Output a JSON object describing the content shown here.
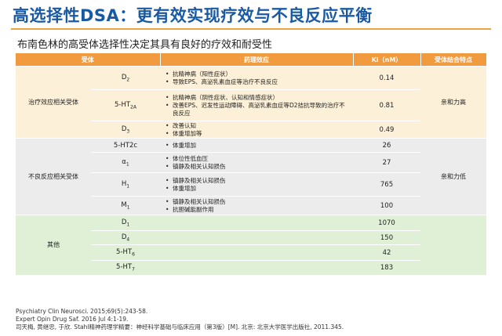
{
  "title": "高选择性DSA：更有效实现疗效与不良反应平衡",
  "subtitle": "布南色林的高受体选择性决定其具有良好的疗效和耐受性",
  "table": {
    "headers": [
      "受体",
      "药理效应",
      "Ki（nM）",
      "受体结合特点"
    ],
    "groups": [
      {
        "name": "治疗效应相关受体",
        "binding": "亲和力高",
        "rows": [
          {
            "receptor": "D2",
            "base": "D",
            "sub": "2",
            "effects": [
              "抗精神病（阳性症状）",
              "导致EPS、高泌乳素血症等治疗不良反应"
            ],
            "ki": "0.14"
          },
          {
            "receptor": "5-HT2A",
            "base": "5-HT",
            "sub": "2A",
            "effects": [
              "抗精神病（阴性症状、认知和情感症状）",
              "改善EPS、迟发性运动障碍、高泌乳素血症等D2拮抗导致的治疗不良反应"
            ],
            "ki": "0.81"
          },
          {
            "receptor": "D3",
            "base": "D",
            "sub": "3",
            "effects": [
              "改善认知",
              "体重增加等"
            ],
            "ki": "0.49"
          }
        ]
      },
      {
        "name": "不良反应相关受体",
        "binding": "亲和力低",
        "rows": [
          {
            "receptor": "5-HT2c",
            "base": "5-HT2c",
            "sub": "",
            "effects": [
              "体重增加"
            ],
            "ki": "26"
          },
          {
            "receptor": "α1",
            "base": "α",
            "sub": "1",
            "effects": [
              "体位性低血压",
              "镇静及相关认知损伤"
            ],
            "ki": "27"
          },
          {
            "receptor": "H1",
            "base": "H",
            "sub": "1",
            "effects": [
              "镇静及相关认知损伤",
              "体重增加"
            ],
            "ki": "765"
          },
          {
            "receptor": "M1",
            "base": "M",
            "sub": "1",
            "effects": [
              "镇静及相关认知损伤",
              "抗胆碱能副作用"
            ],
            "ki": "100"
          }
        ]
      },
      {
        "name": "其他",
        "binding": "",
        "rows": [
          {
            "receptor": "D1",
            "base": "D",
            "sub": "1",
            "effects": [],
            "ki": "1070"
          },
          {
            "receptor": "D4",
            "base": "D",
            "sub": "4",
            "effects": [],
            "ki": "150"
          },
          {
            "receptor": "5-HT6",
            "base": "5-HT",
            "sub": "6",
            "effects": [],
            "ki": "42"
          },
          {
            "receptor": "5-HT7",
            "base": "5-HT",
            "sub": "7",
            "effects": [],
            "ki": "183"
          }
        ]
      }
    ]
  },
  "references": [
    "Psychiatry Clin Neurosci. 2015;69(5):243-58.",
    "Expert Opin Drug Saf. 2016 Jul 4:1-19.",
    "司天梅, 黄继忠, 于欣. Stahl精神药理学精要：神经科学基础与临床应用（第3版）[M]. 北京: 北京大学医学出版社, 2011.345."
  ]
}
